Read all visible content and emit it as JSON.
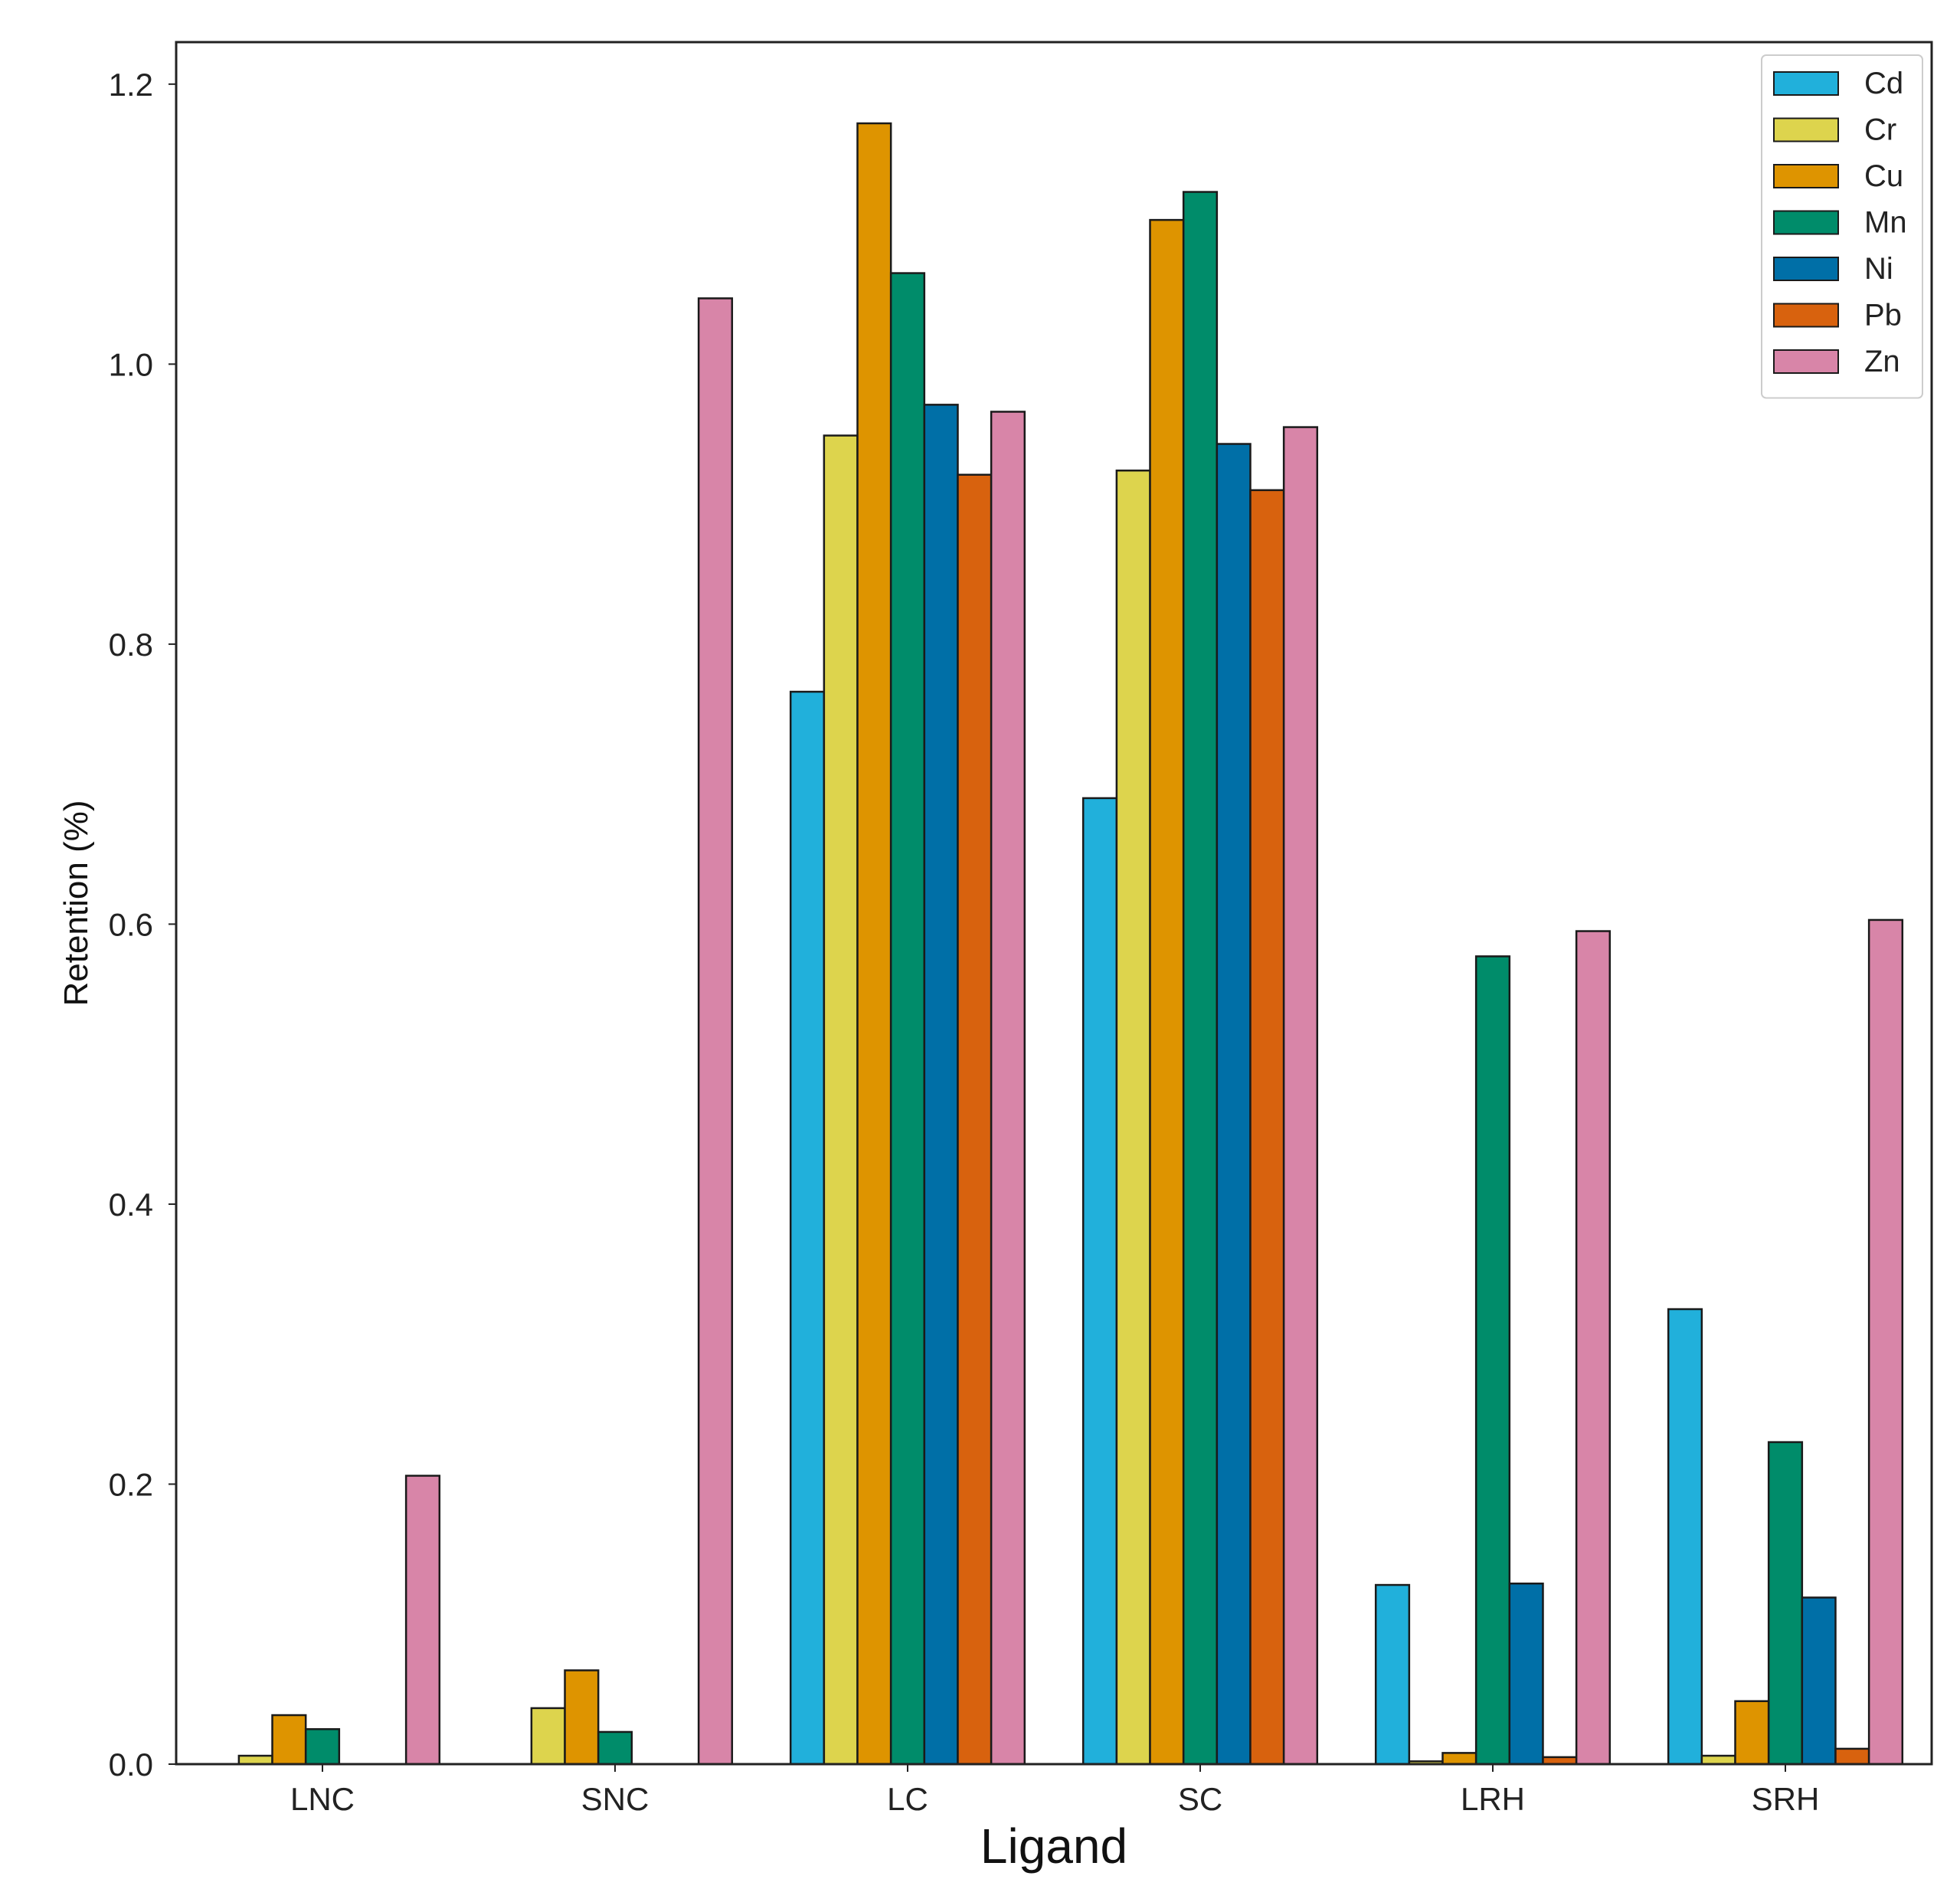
{
  "chart_data": {
    "type": "bar",
    "title": "",
    "xlabel": "Ligand",
    "ylabel": "Retention (%)",
    "categories": [
      "LNC",
      "SNC",
      "LC",
      "SC",
      "LRH",
      "SRH"
    ],
    "ylim": [
      0,
      1.23
    ],
    "yticks": [
      0.0,
      0.2,
      0.4,
      0.6,
      0.8,
      1.0,
      1.2
    ],
    "ytick_labels": [
      "0.0",
      "0.2",
      "0.4",
      "0.6",
      "0.8",
      "1.0",
      "1.2"
    ],
    "grid": false,
    "legend": "top-right",
    "series": [
      {
        "name": "Cd",
        "color": "#21b0db",
        "values": [
          0.0,
          0.0,
          0.766,
          0.69,
          0.128,
          0.325
        ]
      },
      {
        "name": "Cr",
        "color": "#ddd44d",
        "values": [
          0.006,
          0.04,
          0.949,
          0.924,
          0.002,
          0.006
        ]
      },
      {
        "name": "Cu",
        "color": "#de9400",
        "values": [
          0.035,
          0.067,
          1.172,
          1.103,
          0.008,
          0.045
        ]
      },
      {
        "name": "Mn",
        "color": "#008c6a",
        "values": [
          0.025,
          0.023,
          1.065,
          1.123,
          0.577,
          0.23
        ]
      },
      {
        "name": "Ni",
        "color": "#006fa7",
        "values": [
          0.0,
          0.0,
          0.971,
          0.943,
          0.129,
          0.119
        ]
      },
      {
        "name": "Pb",
        "color": "#d8620e",
        "values": [
          0.0,
          0.0,
          0.921,
          0.91,
          0.005,
          0.011
        ]
      },
      {
        "name": "Zn",
        "color": "#d885a8",
        "values": [
          0.206,
          1.047,
          0.966,
          0.955,
          0.595,
          0.603
        ]
      }
    ]
  }
}
